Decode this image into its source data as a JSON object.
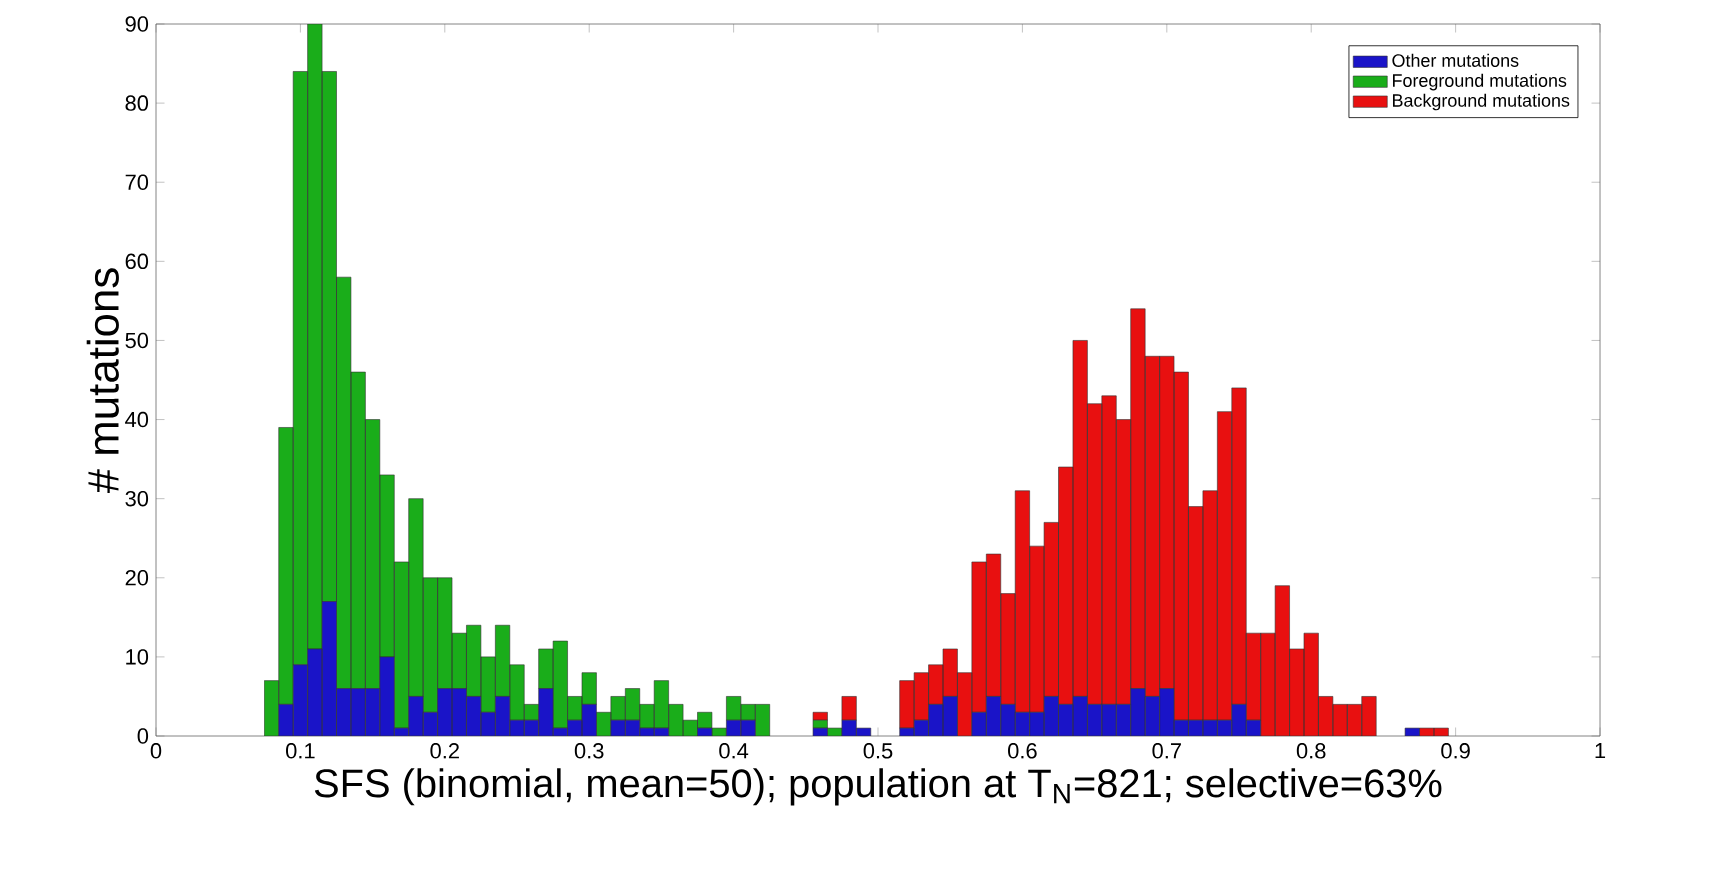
{
  "chart_data": {
    "type": "bar",
    "stacked": true,
    "xlabel": "SFS (binomial, mean=50); population at T$_{N}$=821; selective=63%",
    "ylabel": "# mutations",
    "x": [
      0.08,
      0.09,
      0.1,
      0.11,
      0.12,
      0.13,
      0.14,
      0.15,
      0.16,
      0.17,
      0.18,
      0.19,
      0.2,
      0.21,
      0.22,
      0.23,
      0.24,
      0.25,
      0.26,
      0.27,
      0.28,
      0.29,
      0.3,
      0.31,
      0.32,
      0.33,
      0.34,
      0.35,
      0.36,
      0.37,
      0.38,
      0.39,
      0.4,
      0.41,
      0.42,
      0.43,
      0.44,
      0.45,
      0.46,
      0.47,
      0.48,
      0.49,
      0.5,
      0.51,
      0.52,
      0.53,
      0.54,
      0.55,
      0.56,
      0.57,
      0.58,
      0.59,
      0.6,
      0.61,
      0.62,
      0.63,
      0.64,
      0.65,
      0.66,
      0.67,
      0.68,
      0.69,
      0.7,
      0.71,
      0.72,
      0.73,
      0.74,
      0.75,
      0.76,
      0.77,
      0.78,
      0.79,
      0.8,
      0.81,
      0.82,
      0.83,
      0.84,
      0.85,
      0.86,
      0.87,
      0.88,
      0.89
    ],
    "series": [
      {
        "name": "Other mutations",
        "color": "#1a14c8",
        "values": [
          0,
          4,
          9,
          11,
          17,
          6,
          6,
          6,
          10,
          1,
          5,
          3,
          6,
          6,
          5,
          3,
          5,
          2,
          2,
          6,
          1,
          2,
          4,
          0,
          2,
          2,
          1,
          1,
          0,
          0,
          1,
          0,
          2,
          2,
          0,
          0,
          0,
          0,
          1,
          0,
          2,
          1,
          0,
          0,
          1,
          2,
          4,
          5,
          0,
          3,
          5,
          4,
          3,
          3,
          5,
          4,
          5,
          4,
          4,
          4,
          6,
          5,
          6,
          2,
          2,
          2,
          2,
          4,
          2,
          0,
          0,
          0,
          0,
          0,
          0,
          0,
          0,
          0,
          0,
          1,
          0,
          0
        ]
      },
      {
        "name": "Foreground mutations",
        "color": "#1aad1a",
        "values": [
          7,
          35,
          75,
          79,
          67,
          52,
          40,
          34,
          23,
          21,
          25,
          17,
          14,
          7,
          9,
          7,
          9,
          7,
          2,
          5,
          11,
          3,
          4,
          3,
          3,
          4,
          3,
          6,
          4,
          2,
          2,
          1,
          3,
          2,
          4,
          0,
          0,
          0,
          1,
          1,
          0,
          0,
          0,
          0,
          0,
          0,
          0,
          0,
          0,
          0,
          0,
          0,
          0,
          0,
          0,
          0,
          0,
          0,
          0,
          0,
          0,
          0,
          0,
          0,
          0,
          0,
          0,
          0,
          0,
          0,
          0,
          0,
          0,
          0,
          0,
          0,
          0,
          0,
          0,
          0,
          0,
          0
        ]
      },
      {
        "name": "Background mutations",
        "color": "#e81010",
        "values": [
          0,
          0,
          0,
          0,
          0,
          0,
          0,
          0,
          0,
          0,
          0,
          0,
          0,
          0,
          0,
          0,
          0,
          0,
          0,
          0,
          0,
          0,
          0,
          0,
          0,
          0,
          0,
          0,
          0,
          0,
          0,
          0,
          0,
          0,
          0,
          0,
          0,
          0,
          1,
          0,
          3,
          0,
          0,
          0,
          6,
          6,
          5,
          6,
          8,
          19,
          18,
          14,
          28,
          21,
          22,
          30,
          45,
          38,
          39,
          36,
          48,
          43,
          42,
          44,
          27,
          29,
          39,
          40,
          11,
          13,
          19,
          11,
          13,
          5,
          4,
          4,
          5,
          0,
          0,
          0,
          1,
          1
        ]
      }
    ],
    "xlim": [
      0,
      1
    ],
    "xticks": [
      0,
      0.1,
      0.2,
      0.3,
      0.4,
      0.5,
      0.6,
      0.7,
      0.8,
      0.9,
      1
    ],
    "ylim": [
      0,
      90
    ],
    "yticks": [
      0,
      10,
      20,
      30,
      40,
      50,
      60,
      70,
      80,
      90
    ],
    "legend": "top right",
    "grid": false
  }
}
